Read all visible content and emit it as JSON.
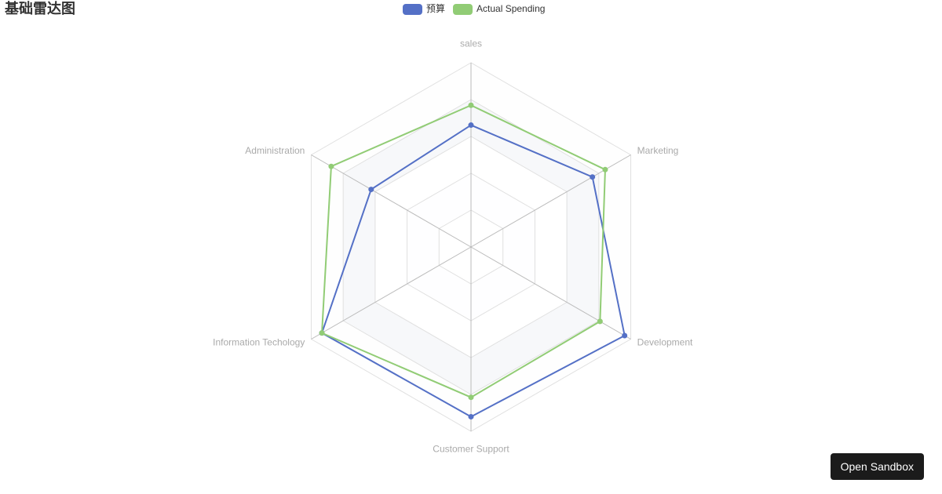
{
  "chart_data": {
    "type": "radar",
    "title": "基础雷达图",
    "indicators": [
      {
        "name": "sales",
        "max": 6500
      },
      {
        "name": "Administration",
        "max": 16000
      },
      {
        "name": "Information Techology",
        "max": 30000
      },
      {
        "name": "Customer Support",
        "max": 38000
      },
      {
        "name": "Development",
        "max": 52000
      },
      {
        "name": "Marketing",
        "max": 25000
      }
    ],
    "series": [
      {
        "name": "预算",
        "color": "#5470c6",
        "values": [
          4300,
          10000,
          28000,
          35000,
          50000,
          19000
        ]
      },
      {
        "name": "Actual Spending",
        "color": "#91cc75",
        "values": [
          5000,
          14000,
          28000,
          31000,
          42000,
          21000
        ]
      }
    ]
  },
  "ui": {
    "button": "Open Sandbox"
  }
}
